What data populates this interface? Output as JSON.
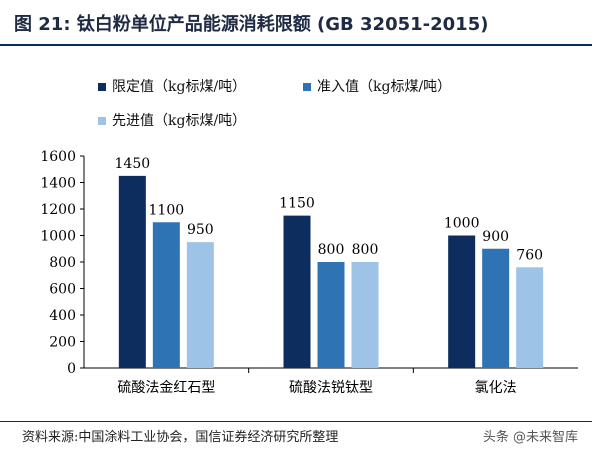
{
  "header": {
    "title": "图 21:  钛白粉单位产品能源消耗限额  (GB 32051-2015)"
  },
  "colors": {
    "title_rule": "#0b2d5c",
    "series": [
      "#0d2d5e",
      "#2e74b5",
      "#9dc3e6"
    ],
    "axis": "#000000"
  },
  "chart_data": {
    "type": "bar",
    "title": "",
    "xlabel": "",
    "ylabel": "",
    "categories": [
      "硫酸法金红石型",
      "硫酸法锐钛型",
      "氯化法"
    ],
    "series": [
      {
        "name": "限定值（kg标煤/吨）",
        "values": [
          1450,
          1150,
          1000
        ]
      },
      {
        "name": "准入值（kg标煤/吨）",
        "values": [
          1100,
          800,
          900
        ]
      },
      {
        "name": "先进值（kg标煤/吨）",
        "values": [
          950,
          800,
          760
        ]
      }
    ],
    "ylim": [
      0,
      1600
    ],
    "yticks": [
      0,
      200,
      400,
      600,
      800,
      1000,
      1200,
      1400,
      1600
    ],
    "grid": false,
    "legend_position": "top-left",
    "data_labels": true
  },
  "footer": {
    "source": "资料来源:中国涂料工业协会，国信证券经济研究所整理",
    "watermark": "头条 @未来智库"
  }
}
